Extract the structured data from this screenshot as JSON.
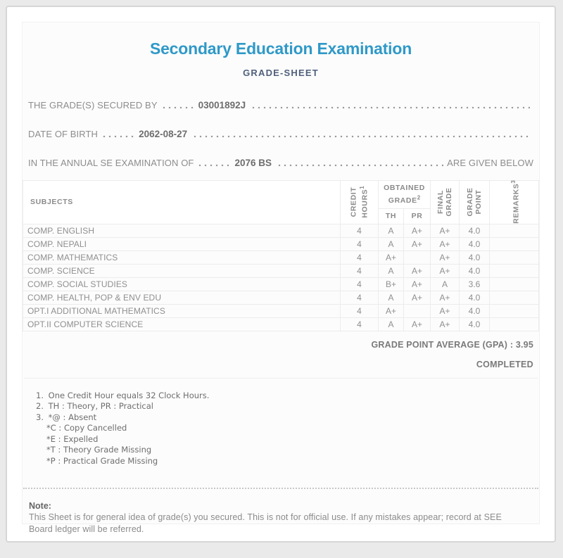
{
  "header": {
    "title": "Secondary Education Examination",
    "subtitle": "GRADE-SHEET"
  },
  "info": {
    "lines": [
      {
        "label": "THE GRADE(S) SECURED BY",
        "value": "03001892J",
        "suffix": ""
      },
      {
        "label": "DATE OF BIRTH",
        "value": "2062-08-27",
        "suffix": ""
      },
      {
        "label": "IN THE ANNUAL SE EXAMINATION OF",
        "value": "2076 BS",
        "suffix": "ARE GIVEN BELOW"
      }
    ]
  },
  "table": {
    "columns": {
      "subjects": "SUBJECTS",
      "credit_line1": "CREDIT",
      "credit_line2": "HOURS",
      "credit_sup": "1",
      "obtained_line1": "OBTAINED",
      "obtained_line2": "GRADE",
      "obtained_sup": "2",
      "th": "TH",
      "pr": "PR",
      "final_line1": "FINAL",
      "final_line2": "GRADE",
      "point_line1": "GRADE",
      "point_line2": "POINT",
      "remarks": "REMARKS",
      "remarks_sup": "3"
    },
    "rows": [
      {
        "subject": "COMP. ENGLISH",
        "credit": "4",
        "th": "A",
        "pr": "A+",
        "final": "A+",
        "point": "4.0",
        "remarks": ""
      },
      {
        "subject": "COMP. NEPALI",
        "credit": "4",
        "th": "A",
        "pr": "A+",
        "final": "A+",
        "point": "4.0",
        "remarks": ""
      },
      {
        "subject": "COMP. MATHEMATICS",
        "credit": "4",
        "th": "A+",
        "pr": "",
        "final": "A+",
        "point": "4.0",
        "remarks": ""
      },
      {
        "subject": "COMP. SCIENCE",
        "credit": "4",
        "th": "A",
        "pr": "A+",
        "final": "A+",
        "point": "4.0",
        "remarks": ""
      },
      {
        "subject": "COMP. SOCIAL STUDIES",
        "credit": "4",
        "th": "B+",
        "pr": "A+",
        "final": "A",
        "point": "3.6",
        "remarks": ""
      },
      {
        "subject": "COMP. HEALTH, POP & ENV EDU",
        "credit": "4",
        "th": "A",
        "pr": "A+",
        "final": "A+",
        "point": "4.0",
        "remarks": ""
      },
      {
        "subject": "OPT.I ADDITIONAL MATHEMATICS",
        "credit": "4",
        "th": "A+",
        "pr": "",
        "final": "A+",
        "point": "4.0",
        "remarks": ""
      },
      {
        "subject": "OPT.II COMPUTER SCIENCE",
        "credit": "4",
        "th": "A",
        "pr": "A+",
        "final": "A+",
        "point": "4.0",
        "remarks": ""
      }
    ]
  },
  "summary": {
    "gpa": "GRADE POINT AVERAGE (GPA) : 3.95",
    "status": "COMPLETED"
  },
  "footnotes": [
    {
      "num": "1.",
      "text": "One Credit Hour equals 32 Clock Hours.",
      "subs": []
    },
    {
      "num": "2.",
      "text": "TH : Theory, PR : Practical",
      "subs": []
    },
    {
      "num": "3.",
      "text": "*@ : Absent",
      "subs": [
        "*C : Copy Cancelled",
        "*E : Expelled",
        "*T : Theory Grade Missing",
        "*P : Practical Grade Missing"
      ]
    }
  ],
  "note": {
    "heading": "Note:",
    "text": "This Sheet is for general idea of grade(s) you secured. This is not for official use. If any mistakes appear; record at SEE Board ledger will be referred."
  },
  "colors": {
    "title_accent": "#2f99c8",
    "subtitle": "#50607c"
  }
}
